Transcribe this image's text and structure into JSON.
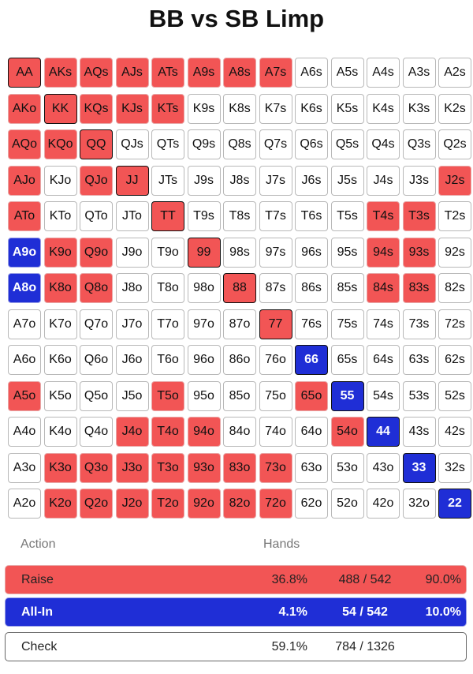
{
  "title": "BB vs SB Limp",
  "colors": {
    "raise": "#f25555",
    "allin": "#1f2ed6",
    "check": "#ffffff"
  },
  "grid": [
    [
      [
        "AA",
        "raise"
      ],
      [
        "AKs",
        "raise"
      ],
      [
        "AQs",
        "raise"
      ],
      [
        "AJs",
        "raise"
      ],
      [
        "ATs",
        "raise"
      ],
      [
        "A9s",
        "raise"
      ],
      [
        "A8s",
        "raise"
      ],
      [
        "A7s",
        "raise"
      ],
      [
        "A6s",
        "check"
      ],
      [
        "A5s",
        "check"
      ],
      [
        "A4s",
        "check"
      ],
      [
        "A3s",
        "check"
      ],
      [
        "A2s",
        "check"
      ]
    ],
    [
      [
        "AKo",
        "raise"
      ],
      [
        "KK",
        "raise"
      ],
      [
        "KQs",
        "raise"
      ],
      [
        "KJs",
        "raise"
      ],
      [
        "KTs",
        "raise"
      ],
      [
        "K9s",
        "check"
      ],
      [
        "K8s",
        "check"
      ],
      [
        "K7s",
        "check"
      ],
      [
        "K6s",
        "check"
      ],
      [
        "K5s",
        "check"
      ],
      [
        "K4s",
        "check"
      ],
      [
        "K3s",
        "check"
      ],
      [
        "K2s",
        "check"
      ]
    ],
    [
      [
        "AQo",
        "raise"
      ],
      [
        "KQo",
        "raise"
      ],
      [
        "QQ",
        "raise"
      ],
      [
        "QJs",
        "check"
      ],
      [
        "QTs",
        "check"
      ],
      [
        "Q9s",
        "check"
      ],
      [
        "Q8s",
        "check"
      ],
      [
        "Q7s",
        "check"
      ],
      [
        "Q6s",
        "check"
      ],
      [
        "Q5s",
        "check"
      ],
      [
        "Q4s",
        "check"
      ],
      [
        "Q3s",
        "check"
      ],
      [
        "Q2s",
        "check"
      ]
    ],
    [
      [
        "AJo",
        "raise"
      ],
      [
        "KJo",
        "check"
      ],
      [
        "QJo",
        "raise"
      ],
      [
        "JJ",
        "raise"
      ],
      [
        "JTs",
        "check"
      ],
      [
        "J9s",
        "check"
      ],
      [
        "J8s",
        "check"
      ],
      [
        "J7s",
        "check"
      ],
      [
        "J6s",
        "check"
      ],
      [
        "J5s",
        "check"
      ],
      [
        "J4s",
        "check"
      ],
      [
        "J3s",
        "check"
      ],
      [
        "J2s",
        "raise"
      ]
    ],
    [
      [
        "ATo",
        "raise"
      ],
      [
        "KTo",
        "check"
      ],
      [
        "QTo",
        "check"
      ],
      [
        "JTo",
        "check"
      ],
      [
        "TT",
        "raise"
      ],
      [
        "T9s",
        "check"
      ],
      [
        "T8s",
        "check"
      ],
      [
        "T7s",
        "check"
      ],
      [
        "T6s",
        "check"
      ],
      [
        "T5s",
        "check"
      ],
      [
        "T4s",
        "raise"
      ],
      [
        "T3s",
        "raise"
      ],
      [
        "T2s",
        "check"
      ]
    ],
    [
      [
        "A9o",
        "allin"
      ],
      [
        "K9o",
        "raise"
      ],
      [
        "Q9o",
        "raise"
      ],
      [
        "J9o",
        "check"
      ],
      [
        "T9o",
        "check"
      ],
      [
        "99",
        "raise"
      ],
      [
        "98s",
        "check"
      ],
      [
        "97s",
        "check"
      ],
      [
        "96s",
        "check"
      ],
      [
        "95s",
        "check"
      ],
      [
        "94s",
        "raise"
      ],
      [
        "93s",
        "raise"
      ],
      [
        "92s",
        "check"
      ]
    ],
    [
      [
        "A8o",
        "allin"
      ],
      [
        "K8o",
        "raise"
      ],
      [
        "Q8o",
        "raise"
      ],
      [
        "J8o",
        "check"
      ],
      [
        "T8o",
        "check"
      ],
      [
        "98o",
        "check"
      ],
      [
        "88",
        "raise"
      ],
      [
        "87s",
        "check"
      ],
      [
        "86s",
        "check"
      ],
      [
        "85s",
        "check"
      ],
      [
        "84s",
        "raise"
      ],
      [
        "83s",
        "raise"
      ],
      [
        "82s",
        "check"
      ]
    ],
    [
      [
        "A7o",
        "check"
      ],
      [
        "K7o",
        "check"
      ],
      [
        "Q7o",
        "check"
      ],
      [
        "J7o",
        "check"
      ],
      [
        "T7o",
        "check"
      ],
      [
        "97o",
        "check"
      ],
      [
        "87o",
        "check"
      ],
      [
        "77",
        "raise"
      ],
      [
        "76s",
        "check"
      ],
      [
        "75s",
        "check"
      ],
      [
        "74s",
        "check"
      ],
      [
        "73s",
        "check"
      ],
      [
        "72s",
        "check"
      ]
    ],
    [
      [
        "A6o",
        "check"
      ],
      [
        "K6o",
        "check"
      ],
      [
        "Q6o",
        "check"
      ],
      [
        "J6o",
        "check"
      ],
      [
        "T6o",
        "check"
      ],
      [
        "96o",
        "check"
      ],
      [
        "86o",
        "check"
      ],
      [
        "76o",
        "check"
      ],
      [
        "66",
        "allin"
      ],
      [
        "65s",
        "check"
      ],
      [
        "64s",
        "check"
      ],
      [
        "63s",
        "check"
      ],
      [
        "62s",
        "check"
      ]
    ],
    [
      [
        "A5o",
        "raise"
      ],
      [
        "K5o",
        "check"
      ],
      [
        "Q5o",
        "check"
      ],
      [
        "J5o",
        "check"
      ],
      [
        "T5o",
        "raise"
      ],
      [
        "95o",
        "check"
      ],
      [
        "85o",
        "check"
      ],
      [
        "75o",
        "check"
      ],
      [
        "65o",
        "raise"
      ],
      [
        "55",
        "allin"
      ],
      [
        "54s",
        "check"
      ],
      [
        "53s",
        "check"
      ],
      [
        "52s",
        "check"
      ]
    ],
    [
      [
        "A4o",
        "check"
      ],
      [
        "K4o",
        "check"
      ],
      [
        "Q4o",
        "check"
      ],
      [
        "J4o",
        "raise"
      ],
      [
        "T4o",
        "raise"
      ],
      [
        "94o",
        "raise"
      ],
      [
        "84o",
        "check"
      ],
      [
        "74o",
        "check"
      ],
      [
        "64o",
        "check"
      ],
      [
        "54o",
        "raise"
      ],
      [
        "44",
        "allin"
      ],
      [
        "43s",
        "check"
      ],
      [
        "42s",
        "check"
      ]
    ],
    [
      [
        "A3o",
        "check"
      ],
      [
        "K3o",
        "raise"
      ],
      [
        "Q3o",
        "raise"
      ],
      [
        "J3o",
        "raise"
      ],
      [
        "T3o",
        "raise"
      ],
      [
        "93o",
        "raise"
      ],
      [
        "83o",
        "raise"
      ],
      [
        "73o",
        "raise"
      ],
      [
        "63o",
        "check"
      ],
      [
        "53o",
        "check"
      ],
      [
        "43o",
        "check"
      ],
      [
        "33",
        "allin"
      ],
      [
        "32s",
        "check"
      ]
    ],
    [
      [
        "A2o",
        "check"
      ],
      [
        "K2o",
        "raise"
      ],
      [
        "Q2o",
        "raise"
      ],
      [
        "J2o",
        "raise"
      ],
      [
        "T2o",
        "raise"
      ],
      [
        "92o",
        "raise"
      ],
      [
        "82o",
        "raise"
      ],
      [
        "72o",
        "raise"
      ],
      [
        "62o",
        "check"
      ],
      [
        "52o",
        "check"
      ],
      [
        "42o",
        "check"
      ],
      [
        "32o",
        "check"
      ],
      [
        "22",
        "allin"
      ]
    ]
  ],
  "summary": {
    "header_action": "Action",
    "header_hands": "Hands",
    "rows": [
      {
        "name": "Raise",
        "pct": "36.8%",
        "count": "488 / 542",
        "freq": "90.0%"
      },
      {
        "name": "All-In",
        "pct": "4.1%",
        "count": "54 / 542",
        "freq": "10.0%"
      },
      {
        "name": "Check",
        "pct": "59.1%",
        "count": "784 / 1326"
      }
    ]
  }
}
